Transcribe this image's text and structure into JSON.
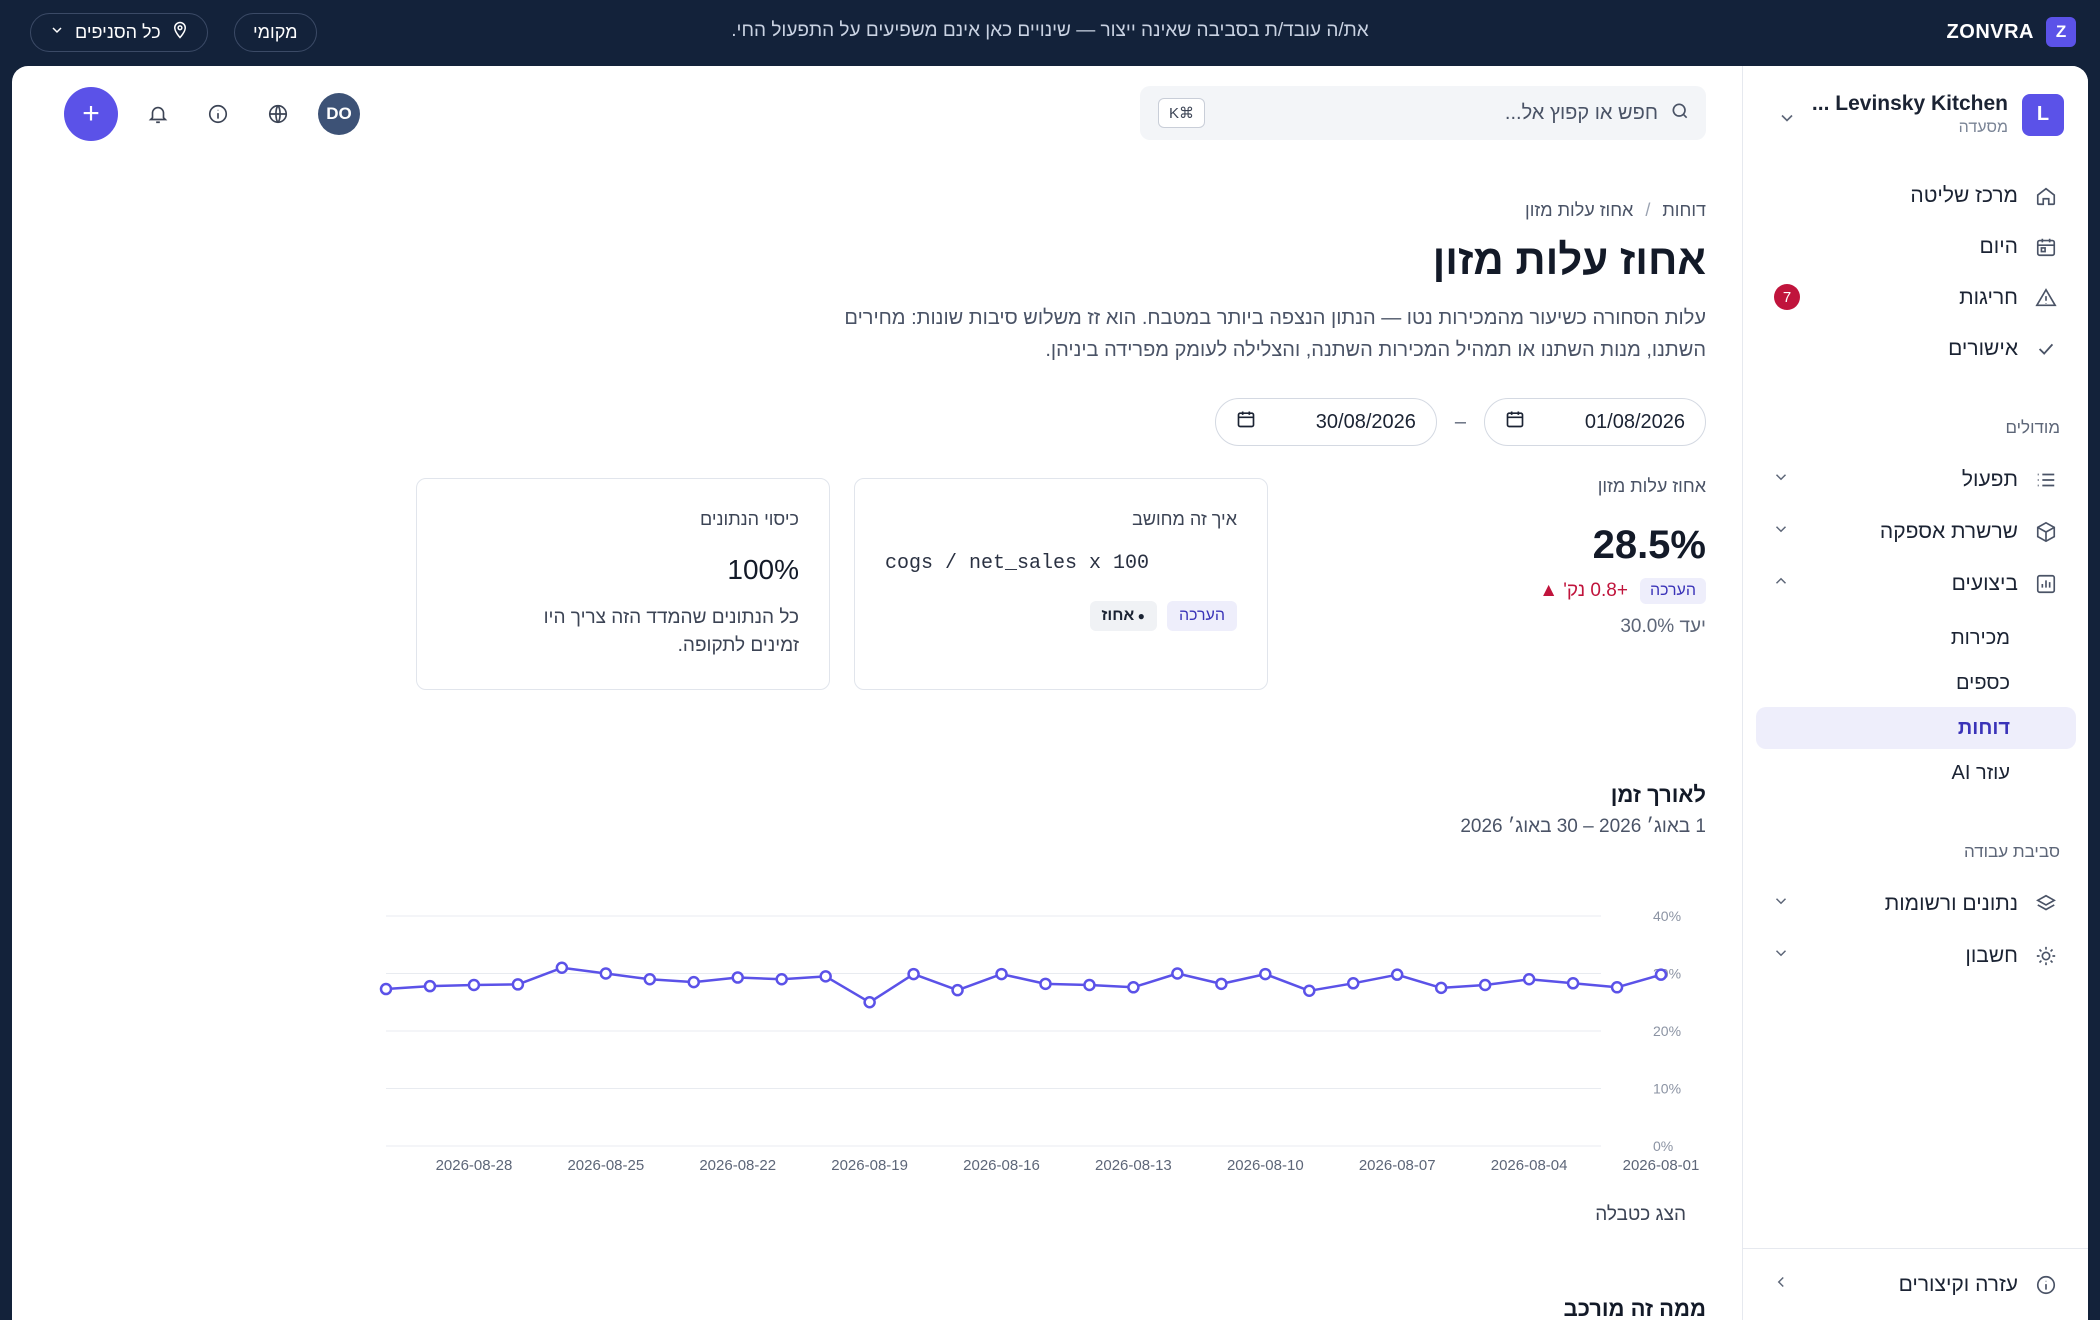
{
  "topbar": {
    "brand_initial": "Z",
    "brand_name": "ZONVRA",
    "env_notice": "את/ה עובד/ת בסביבה שאינה ייצור — שינויים כאן אינם משפיעים על התפעול החי.",
    "local_label": "מקומי",
    "branches_label": "כל הסניפים"
  },
  "sidebar": {
    "org_initial": "L",
    "org_name": "Levinsky Kitchen ...",
    "org_type": "מסעדה",
    "primary": [
      {
        "label": "מרכז שליטה",
        "icon": "home-icon"
      },
      {
        "label": "היום",
        "icon": "calendar-icon"
      },
      {
        "label": "חריגות",
        "icon": "alert-triangle-icon",
        "badge": "7"
      },
      {
        "label": "אישורים",
        "icon": "check-icon"
      }
    ],
    "modules_heading": "מודולים",
    "modules": [
      {
        "label": "תפעול",
        "icon": "list-icon"
      },
      {
        "label": "שרשרת אספקה",
        "icon": "box-icon"
      },
      {
        "label": "ביצועים",
        "icon": "bar-chart-icon"
      }
    ],
    "performance_sub": [
      "מכירות",
      "כספים",
      "דוחות",
      "עוזר AI"
    ],
    "active_sub": "דוחות",
    "workspace_heading": "סביבת עבודה",
    "workspace": [
      {
        "label": "נתונים ורשומות",
        "icon": "layers-icon"
      },
      {
        "label": "חשבון",
        "icon": "sun-gear-icon"
      }
    ],
    "footer_label": "עזרה וקיצורים"
  },
  "header": {
    "search_placeholder": "חפש או קפוץ אל...",
    "search_shortcut": "⌘K",
    "user_initials": "DO",
    "fab_label": "+"
  },
  "page": {
    "crumb_parent": "דוחות",
    "crumb_current": "אחוז עלות מזון",
    "title": "אחוז עלות מזון",
    "description": "עלות הסחורה כשיעור מהמכירות נטו — הנתון הנצפה ביותר במטבח. הוא זז משלוש סיבות שונות: מחירים השתנו, מנות השתנו או תמהיל המכירות השתנה, והצלילה לעומק מפרידה ביניהן.",
    "date_from": "01/08/2026",
    "date_to": "30/08/2026",
    "date_sep": "–"
  },
  "kpi": {
    "label": "אחוז עלות מזון",
    "value": "28.5%",
    "estimate_tag": "הערכה",
    "delta": "+0.8 נק' ▲",
    "target": "יעד 30.0%"
  },
  "card_how": {
    "title": "איך זה מחושב",
    "formula": "cogs / net_sales x 100",
    "tag_estimate": "הערכה",
    "tag_unit": "אחוז"
  },
  "card_coverage": {
    "title": "כיסוי הנתונים",
    "value": "100%",
    "desc": "כל הנתונים שהמדד הזה צריך היו זמינים לתקופה."
  },
  "trend": {
    "title": "לאורך זמן",
    "subtitle": "1 באוג׳ 2026 – 30 באוג׳ 2026",
    "table_toggle": "הצג כטבלה"
  },
  "next_section": {
    "title": "ממה זה מורכב"
  },
  "colors": {
    "accent": "#5b52e8",
    "danger": "#c0143c",
    "topbar": "#13223a"
  },
  "chart_data": {
    "type": "line",
    "x": [
      "2026-08-01",
      "2026-08-02",
      "2026-08-03",
      "2026-08-04",
      "2026-08-05",
      "2026-08-06",
      "2026-08-07",
      "2026-08-08",
      "2026-08-09",
      "2026-08-10",
      "2026-08-11",
      "2026-08-12",
      "2026-08-13",
      "2026-08-14",
      "2026-08-15",
      "2026-08-16",
      "2026-08-17",
      "2026-08-18",
      "2026-08-19",
      "2026-08-20",
      "2026-08-21",
      "2026-08-22",
      "2026-08-23",
      "2026-08-24",
      "2026-08-25",
      "2026-08-26",
      "2026-08-27",
      "2026-08-28",
      "2026-08-29",
      "2026-08-30"
    ],
    "xticks": [
      "2026-08-01",
      "2026-08-04",
      "2026-08-07",
      "2026-08-10",
      "2026-08-13",
      "2026-08-16",
      "2026-08-19",
      "2026-08-22",
      "2026-08-25",
      "2026-08-28"
    ],
    "series": [
      {
        "values": [
          29.8,
          27.6,
          28.3,
          29.0,
          28.0,
          27.5,
          29.8,
          28.3,
          27.0,
          29.9,
          28.2,
          30.0,
          27.6,
          28.0,
          28.2,
          29.9,
          27.1,
          29.9,
          25.0,
          29.5,
          29.0,
          29.3,
          28.5,
          29.0,
          30.0,
          31.0,
          28.1,
          28.0,
          27.8,
          27.3
        ]
      }
    ],
    "ylim": [
      0,
      40
    ],
    "yticks": [
      "0%",
      "10%",
      "20%",
      "30%",
      "40%"
    ],
    "grid": true,
    "xlabel": "",
    "ylabel": ""
  }
}
